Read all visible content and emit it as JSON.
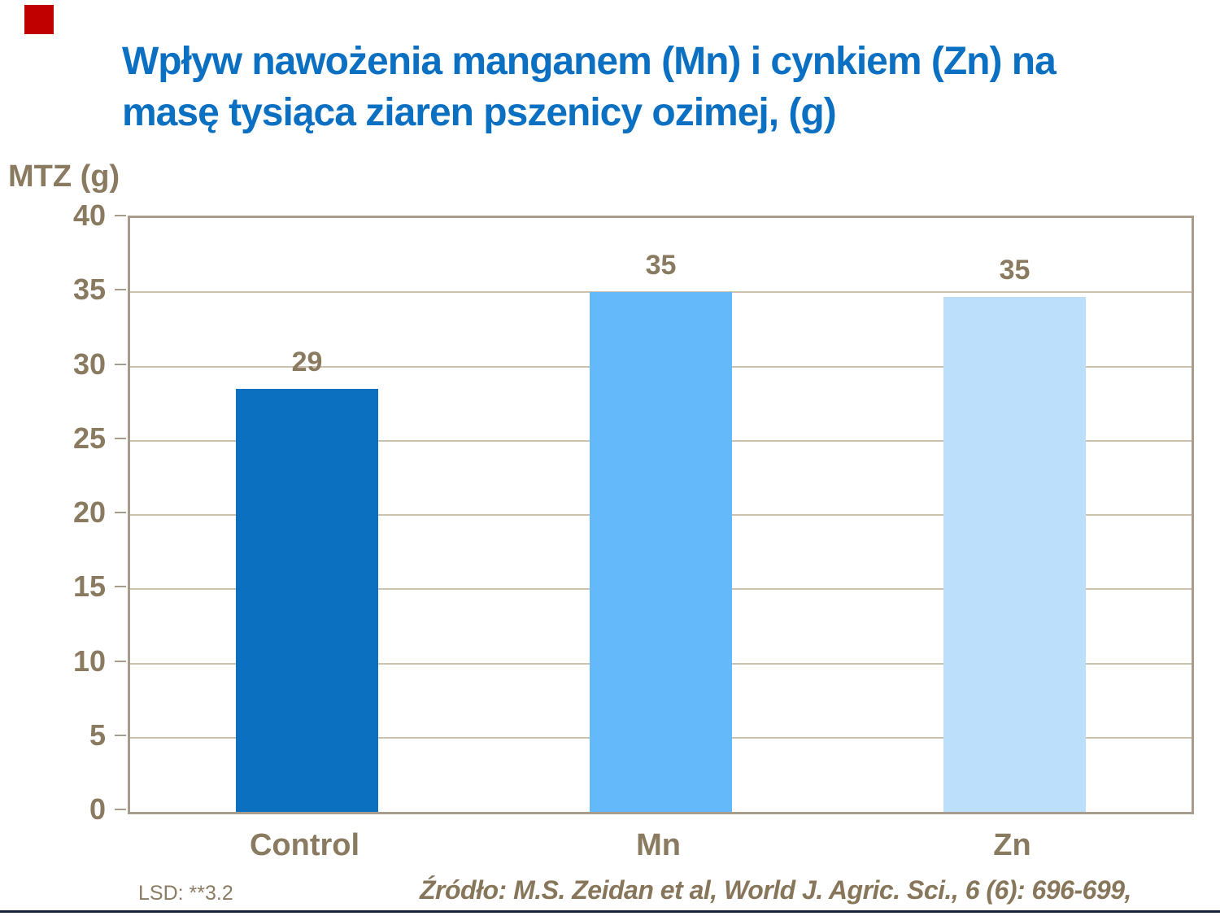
{
  "slide": {
    "title_line1": "Wpływ  nawożenia manganem (Mn) i cynkiem (Zn) na",
    "title_line2": "masę tysiąca ziaren pszenicy ozimej, (g)",
    "title_color": "#0c70c2",
    "red_square_color": "#c00000",
    "bottom_rule_color": "#16213a"
  },
  "chart_data": {
    "type": "bar",
    "title": "Wpływ nawożenia manganem (Mn) i cynkiem (Zn) na masę tysiąca ziaren pszenicy ozimej, (g)",
    "ylabel": "MTZ (g)",
    "xlabel": "",
    "categories": [
      "Control",
      "Mn",
      "Zn"
    ],
    "values": [
      29,
      35,
      35
    ],
    "data_labels": [
      "29",
      "35",
      "35"
    ],
    "values_rendered": [
      28.5,
      35.0,
      34.7
    ],
    "bar_colors": [
      "#0b70c0",
      "#63b9f9",
      "#bcdffc"
    ],
    "ylim": [
      0,
      40
    ],
    "yticks": [
      0,
      5,
      10,
      15,
      20,
      25,
      30,
      35,
      40
    ],
    "grid": true,
    "legend": false,
    "text_color": "#897a60",
    "grid_color": "#ccc2ae",
    "border_color": "#a89d8c"
  },
  "footer": {
    "lsd": "LSD: **3.2",
    "source": "Źródło: M.S. Zeidan et al, World J. Agric. Sci., 6 (6): 696-699,"
  }
}
